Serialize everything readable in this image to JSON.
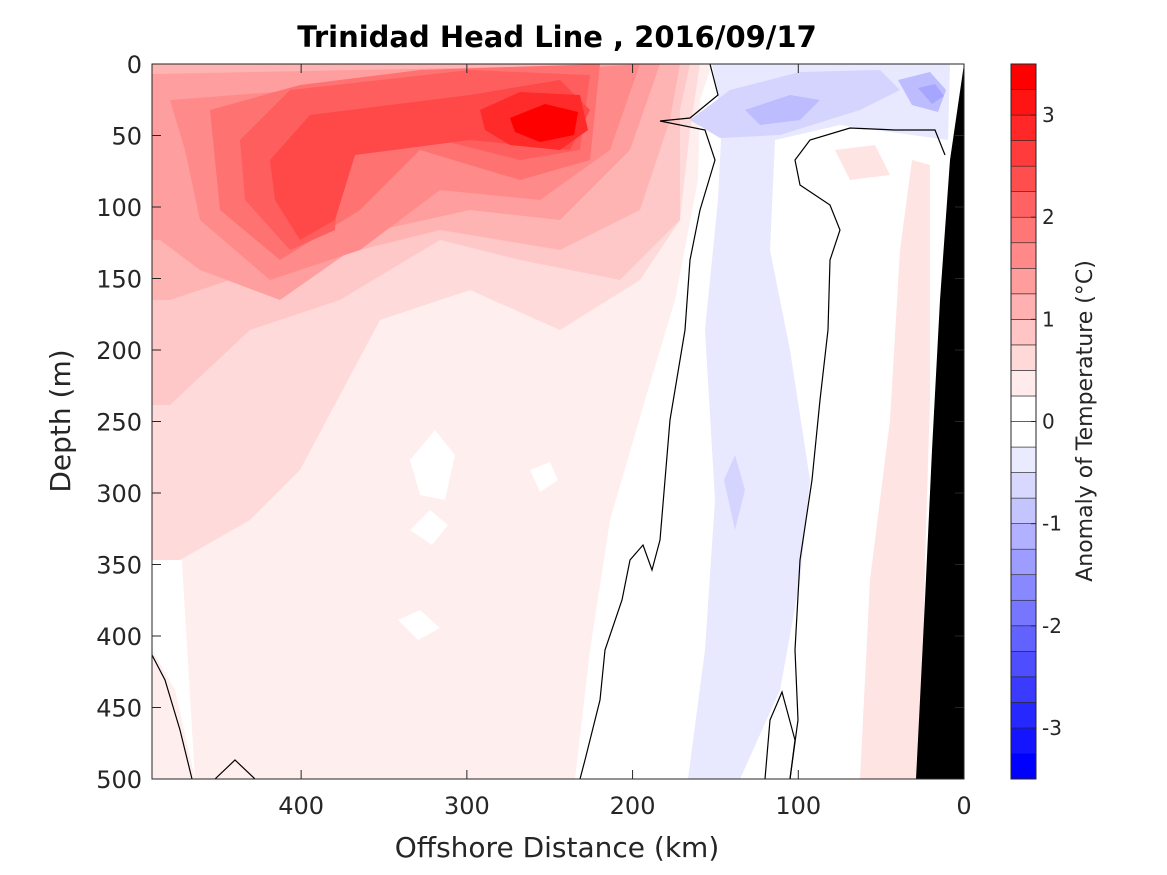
{
  "chart_data": {
    "type": "heatmap",
    "title": "Trinidad Head Line , 2016/09/17",
    "xlabel": "Offshore Distance (km)",
    "ylabel": "Depth (m)",
    "xlim": [
      490,
      0
    ],
    "ylim": [
      0,
      500
    ],
    "x_direction": "reversed",
    "y_direction": "reversed",
    "x_ticks": [
      400,
      300,
      200,
      100,
      0
    ],
    "y_ticks": [
      0,
      50,
      100,
      150,
      200,
      250,
      300,
      350,
      400,
      450,
      500
    ],
    "x_tick_labels": [
      "400",
      "300",
      "200",
      "100",
      "0"
    ],
    "y_tick_labels": [
      "0",
      "50",
      "100",
      "150",
      "200",
      "250",
      "300",
      "350",
      "400",
      "450",
      "500"
    ],
    "colorbar": {
      "label": "Anomaly of Temperature (°C)",
      "range": [
        -3.5,
        3.5
      ],
      "step": 0.25,
      "ticks": [
        -3,
        -2,
        -1,
        0,
        1,
        2,
        3
      ],
      "tick_labels": [
        "-3",
        "-2",
        "-1",
        "0",
        "1",
        "2",
        "3"
      ],
      "cold_color": "#0000ff",
      "warm_color": "#ff0000",
      "neutral_color": "#ffffff"
    },
    "bathymetry_color": "#000000",
    "contour_line": "0 °C anomaly",
    "anomaly_field": [
      {
        "x": 255,
        "depth": 40,
        "value": 3.3
      },
      {
        "x": 300,
        "depth": 30,
        "value": 2.7
      },
      {
        "x": 340,
        "depth": 60,
        "value": 2.3
      },
      {
        "x": 405,
        "depth": 105,
        "value": 2.3
      },
      {
        "x": 380,
        "depth": 150,
        "value": 1.6
      },
      {
        "x": 450,
        "depth": 60,
        "value": 1.3
      },
      {
        "x": 330,
        "depth": 180,
        "value": 1.1
      },
      {
        "x": 420,
        "depth": 230,
        "value": 1.0
      },
      {
        "x": 250,
        "depth": 140,
        "value": 1.2
      },
      {
        "x": 200,
        "depth": 60,
        "value": 1.0
      },
      {
        "x": 380,
        "depth": 330,
        "value": 0.6
      },
      {
        "x": 280,
        "depth": 270,
        "value": 0.6
      },
      {
        "x": 300,
        "depth": 420,
        "value": 0.3
      },
      {
        "x": 140,
        "depth": 200,
        "value": -0.4
      },
      {
        "x": 130,
        "depth": 420,
        "value": -0.4
      },
      {
        "x": 140,
        "depth": 320,
        "value": -0.6
      },
      {
        "x": 110,
        "depth": 30,
        "value": -0.9
      },
      {
        "x": 20,
        "depth": 20,
        "value": -1.1
      },
      {
        "x": 55,
        "depth": 300,
        "value": 0.3
      },
      {
        "x": 35,
        "depth": 250,
        "value": 0.6
      }
    ]
  }
}
